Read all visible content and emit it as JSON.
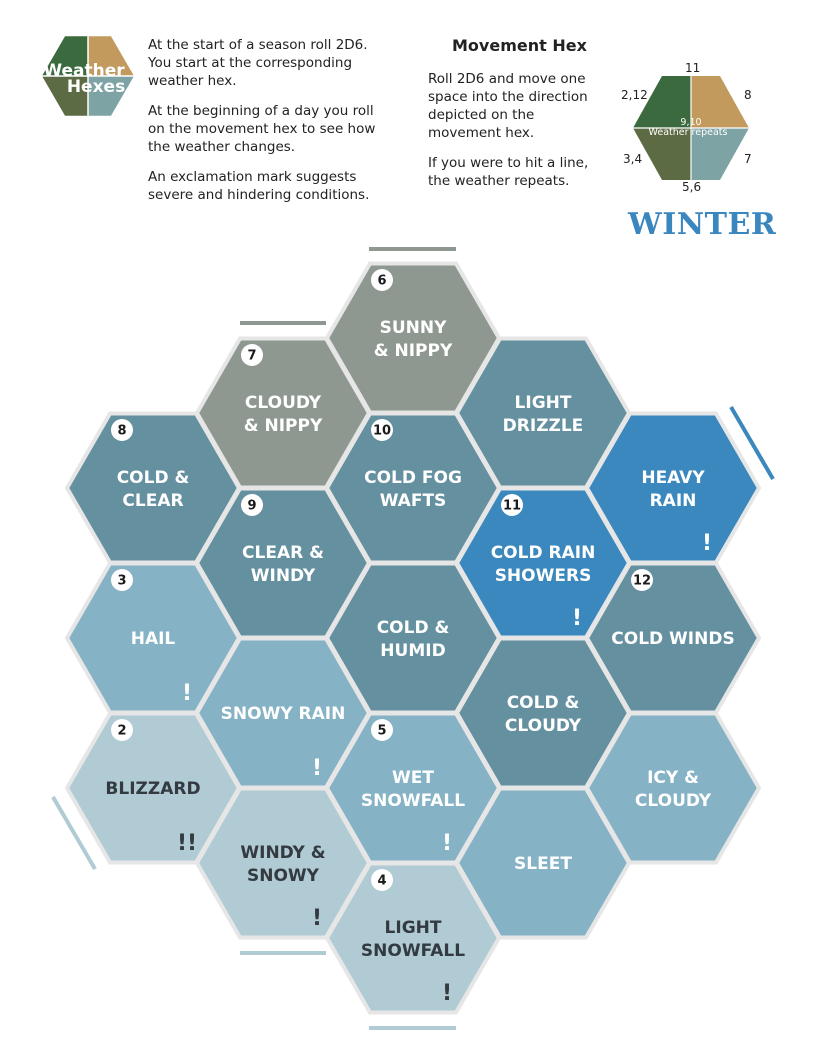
{
  "logo": {
    "line1": "Weather",
    "line2": "Hexes",
    "colors": [
      "#3c6a3f",
      "#c29a5e",
      "#5d6b44",
      "#7da3a4"
    ]
  },
  "intro": {
    "p1": "At the start of a season roll 2D6. You start at the corresponding weather hex.",
    "p2": "At the beginning of a day you roll on the movement hex to see how the weather changes.",
    "p3": "An exclamation mark suggests severe and hindering conditions."
  },
  "movement": {
    "title": "Movement Hex",
    "p1": "Roll 2D6 and move one space into the direction depicted on the movement hex.",
    "p2": "If you were to hit a line, the weather repeats.",
    "labels": {
      "top": "11",
      "top_left": "2,12",
      "top_right": "8",
      "bottom_left": "3,4",
      "bottom_right": "7",
      "bottom": "5,6",
      "center": "9,10",
      "center_text": "Weather repeats"
    }
  },
  "season": "WINTER",
  "hexes": [
    {
      "id": "sunny-nippy",
      "line1": "SUNNY",
      "line2": "& NIPPY",
      "badge": "6",
      "excl": "",
      "color": "#8e9891",
      "dark": false
    },
    {
      "id": "cloudy-nippy",
      "line1": "CLOUDY",
      "line2": "& NIPPY",
      "badge": "7",
      "excl": "",
      "color": "#8e9891",
      "dark": false
    },
    {
      "id": "light-drizzle",
      "line1": "LIGHT",
      "line2": "DRIZZLE",
      "badge": "",
      "excl": "",
      "color": "#6590a0",
      "dark": false
    },
    {
      "id": "cold-clear",
      "line1": "COLD &",
      "line2": "CLEAR",
      "badge": "8",
      "excl": "",
      "color": "#6590a0",
      "dark": false
    },
    {
      "id": "cold-fog-wafts",
      "line1": "COLD FOG",
      "line2": "WAFTS",
      "badge": "10",
      "excl": "",
      "color": "#6590a0",
      "dark": false
    },
    {
      "id": "heavy-rain",
      "line1": "HEAVY",
      "line2": "RAIN",
      "badge": "",
      "excl": "!",
      "color": "#3a88bd",
      "dark": false
    },
    {
      "id": "clear-windy",
      "line1": "CLEAR &",
      "line2": "WINDY",
      "badge": "9",
      "excl": "",
      "color": "#6590a0",
      "dark": false
    },
    {
      "id": "cold-rain-showers",
      "line1": "COLD RAIN",
      "line2": "SHOWERS",
      "badge": "11",
      "excl": "!",
      "color": "#3a88bd",
      "dark": false
    },
    {
      "id": "hail",
      "line1": "HAIL",
      "line2": "",
      "badge": "3",
      "excl": "!",
      "color": "#85b2c5",
      "dark": false
    },
    {
      "id": "cold-humid",
      "line1": "COLD &",
      "line2": "HUMID",
      "badge": "",
      "excl": "",
      "color": "#6590a0",
      "dark": false
    },
    {
      "id": "cold-winds",
      "line1": "COLD WINDS",
      "line2": "",
      "badge": "12",
      "excl": "",
      "color": "#6590a0",
      "dark": false
    },
    {
      "id": "snowy-rain",
      "line1": "SNOWY RAIN",
      "line2": "",
      "badge": "",
      "excl": "!",
      "color": "#85b2c5",
      "dark": false
    },
    {
      "id": "cold-cloudy",
      "line1": "COLD &",
      "line2": "CLOUDY",
      "badge": "",
      "excl": "",
      "color": "#6590a0",
      "dark": false
    },
    {
      "id": "blizzard",
      "line1": "BLIZZARD",
      "line2": "",
      "badge": "2",
      "excl": "!!",
      "color": "#b1cbd5",
      "dark": true
    },
    {
      "id": "wet-snowfall",
      "line1": "WET",
      "line2": "SNOWFALL",
      "badge": "5",
      "excl": "!",
      "color": "#85b2c5",
      "dark": false
    },
    {
      "id": "icy-cloudy",
      "line1": "ICY &",
      "line2": "CLOUDY",
      "badge": "",
      "excl": "",
      "color": "#85b2c5",
      "dark": false
    },
    {
      "id": "windy-snowy",
      "line1": "WINDY &",
      "line2": "SNOWY",
      "badge": "",
      "excl": "!",
      "color": "#b1cbd5",
      "dark": true
    },
    {
      "id": "sleet",
      "line1": "SLEET",
      "line2": "",
      "badge": "",
      "excl": "",
      "color": "#85b2c5",
      "dark": false
    },
    {
      "id": "light-snowfall",
      "line1": "LIGHT",
      "line2": "SNOWFALL",
      "badge": "4",
      "excl": "!",
      "color": "#b1cbd5",
      "dark": true
    }
  ],
  "edge_colors": {
    "top": "#8e9891",
    "right": "#3a88bd",
    "left": "#b1cbd5",
    "bottom": "#b1cbd5"
  }
}
